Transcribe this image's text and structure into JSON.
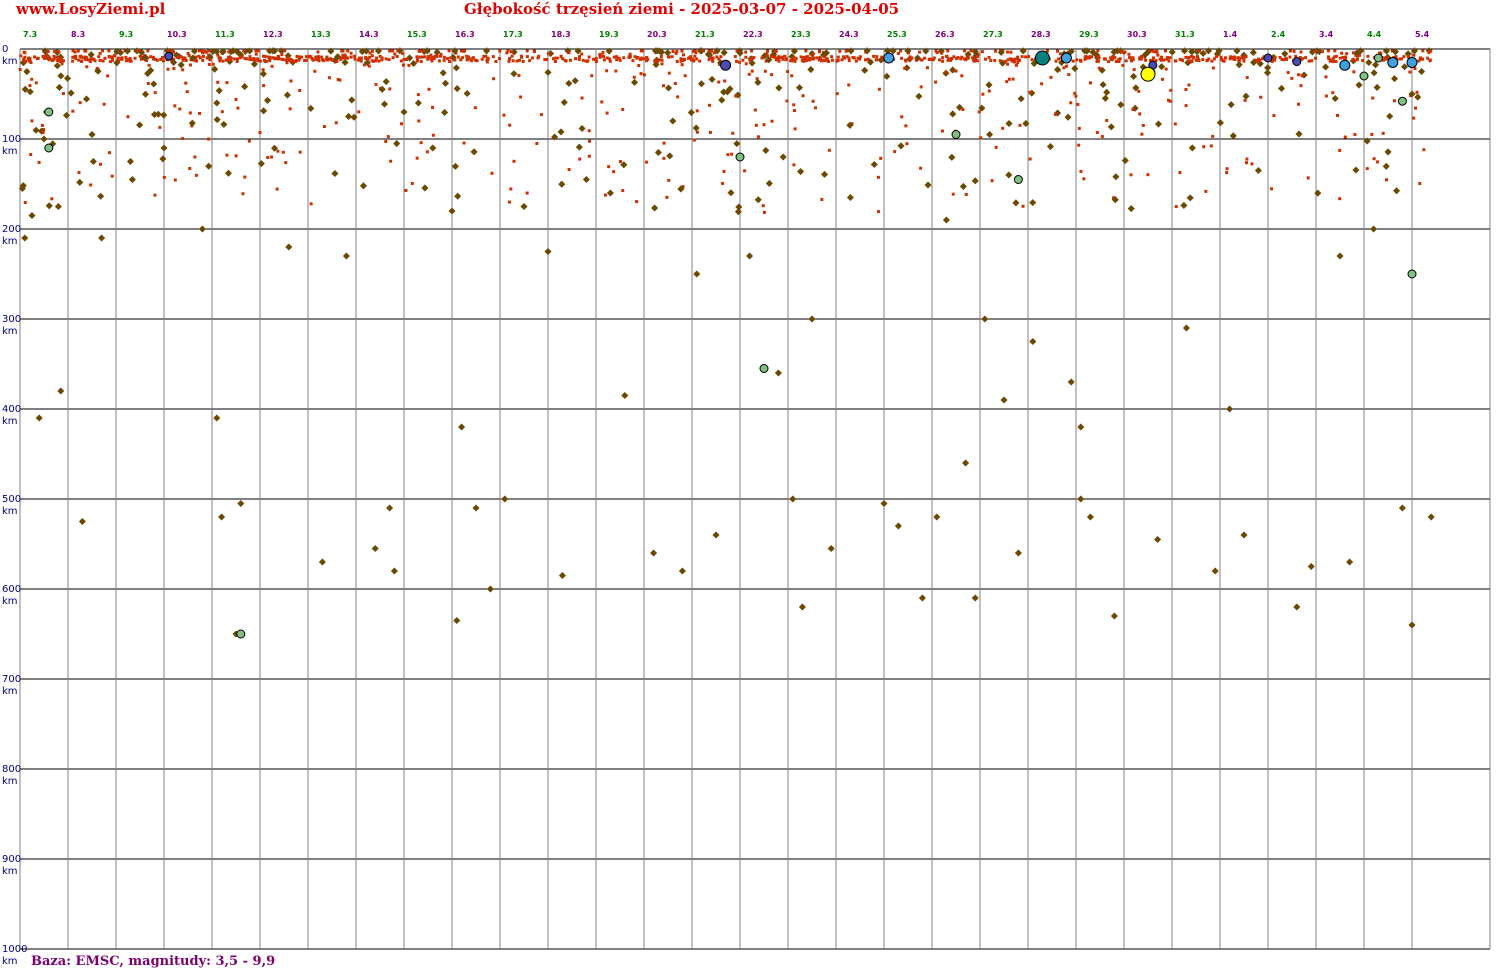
{
  "site": "www.LosyZiemi.pl",
  "title": "Głębokość trzęsień ziemi - 2025-03-07 - 2025-04-05",
  "footer": "Baza: EMSC, magnitudy: 3,5 - 9,9",
  "chart_data": {
    "type": "scatter",
    "title": "Głębokość trzęsień ziemi - 2025-03-07 - 2025-04-05",
    "xlabel": "",
    "ylabel": "",
    "ylim": [
      0,
      1000
    ],
    "yreversed": true,
    "grid": true,
    "ytick_values": [
      0,
      100,
      200,
      300,
      400,
      500,
      600,
      700,
      800,
      900,
      1000
    ],
    "ytick_unit": "km",
    "xticks": [
      "7.3",
      "8.3",
      "9.3",
      "10.3",
      "11.3",
      "12.3",
      "13.3",
      "14.3",
      "15.3",
      "16.3",
      "17.3",
      "18.3",
      "19.3",
      "20.3",
      "21.3",
      "22.3",
      "23.3",
      "24.3",
      "25.3",
      "26.3",
      "27.3",
      "28.3",
      "29.3",
      "30.3",
      "31.3",
      "1.4",
      "2.4",
      "3.4",
      "4.4",
      "5.4"
    ],
    "xtick_colors": [
      "#008000",
      "#800080",
      "#008000",
      "#800080",
      "#008000",
      "#800080",
      "#008000",
      "#800080",
      "#008000",
      "#800080",
      "#008000",
      "#800080",
      "#008000",
      "#800080",
      "#008000",
      "#800080",
      "#008000",
      "#800080",
      "#008000",
      "#800080",
      "#008000",
      "#800080",
      "#008000",
      "#800080",
      "#008000",
      "#800080",
      "#008000",
      "#800080",
      "#008000",
      "#800080"
    ],
    "marker_colors": {
      "small": "#d03000",
      "medium": "#6b4a00",
      "m5": "#80c080",
      "m6": "#4a4ab0",
      "m6b": "#40a0e0",
      "m7": "#008080",
      "highlight": "#ffff00"
    },
    "x_unit": "days since 7.3",
    "points": [
      [
        0.05,
        155
      ],
      [
        0.1,
        210
      ],
      [
        0.25,
        185
      ],
      [
        0.4,
        410
      ],
      [
        0.5,
        100
      ],
      [
        0.55,
        70
      ],
      [
        0.6,
        110
      ],
      [
        0.8,
        175
      ],
      [
        0.85,
        380
      ],
      [
        1.3,
        525
      ],
      [
        1.5,
        95
      ],
      [
        1.7,
        210
      ],
      [
        2.3,
        125
      ],
      [
        2.6,
        10
      ],
      [
        3.0,
        110
      ],
      [
        3.2,
        15
      ],
      [
        3.6,
        10
      ],
      [
        3.8,
        200
      ],
      [
        4.1,
        60
      ],
      [
        4.1,
        410
      ],
      [
        4.2,
        520
      ],
      [
        4.6,
        505
      ],
      [
        4.5,
        650
      ],
      [
        5.6,
        220
      ],
      [
        6.3,
        570
      ],
      [
        6.8,
        230
      ],
      [
        7.4,
        555
      ],
      [
        7.7,
        510
      ],
      [
        7.8,
        580
      ],
      [
        8.0,
        70
      ],
      [
        8.3,
        60
      ],
      [
        8.6,
        110
      ],
      [
        9.0,
        180
      ],
      [
        9.1,
        635
      ],
      [
        9.2,
        420
      ],
      [
        9.5,
        510
      ],
      [
        9.8,
        600
      ],
      [
        10.1,
        500
      ],
      [
        10.5,
        175
      ],
      [
        11.0,
        225
      ],
      [
        11.3,
        585
      ],
      [
        11.8,
        145
      ],
      [
        12.3,
        160
      ],
      [
        12.6,
        385
      ],
      [
        13.2,
        560
      ],
      [
        13.3,
        115
      ],
      [
        13.6,
        80
      ],
      [
        13.8,
        580
      ],
      [
        14.1,
        250
      ],
      [
        14.5,
        540
      ],
      [
        15.2,
        230
      ],
      [
        15.6,
        12
      ],
      [
        15.9,
        120
      ],
      [
        15.8,
        360
      ],
      [
        16.1,
        500
      ],
      [
        16.3,
        620
      ],
      [
        16.5,
        300
      ],
      [
        16.9,
        555
      ],
      [
        17.3,
        165
      ],
      [
        18.0,
        505
      ],
      [
        18.3,
        530
      ],
      [
        18.7,
        10
      ],
      [
        18.8,
        610
      ],
      [
        19.1,
        520
      ],
      [
        19.3,
        190
      ],
      [
        19.7,
        460
      ],
      [
        19.9,
        610
      ],
      [
        20.1,
        300
      ],
      [
        20.2,
        95
      ],
      [
        20.5,
        390
      ],
      [
        20.6,
        140
      ],
      [
        20.8,
        560
      ],
      [
        21.1,
        325
      ],
      [
        21.4,
        10
      ],
      [
        21.7,
        15
      ],
      [
        21.9,
        370
      ],
      [
        22.1,
        420
      ],
      [
        22.1,
        500
      ],
      [
        22.3,
        520
      ],
      [
        22.8,
        630
      ],
      [
        23.4,
        20
      ],
      [
        23.7,
        545
      ],
      [
        24.3,
        310
      ],
      [
        24.9,
        580
      ],
      [
        25.2,
        400
      ],
      [
        25.5,
        540
      ],
      [
        25.7,
        15
      ],
      [
        25.8,
        135
      ],
      [
        26.6,
        620
      ],
      [
        26.9,
        575
      ],
      [
        27.2,
        20
      ],
      [
        27.5,
        230
      ],
      [
        27.7,
        570
      ],
      [
        28.1,
        15
      ],
      [
        28.2,
        200
      ],
      [
        28.8,
        510
      ],
      [
        29.0,
        640
      ],
      [
        29.2,
        25
      ],
      [
        29.4,
        520
      ],
      [
        29.0,
        50
      ]
    ]
  }
}
